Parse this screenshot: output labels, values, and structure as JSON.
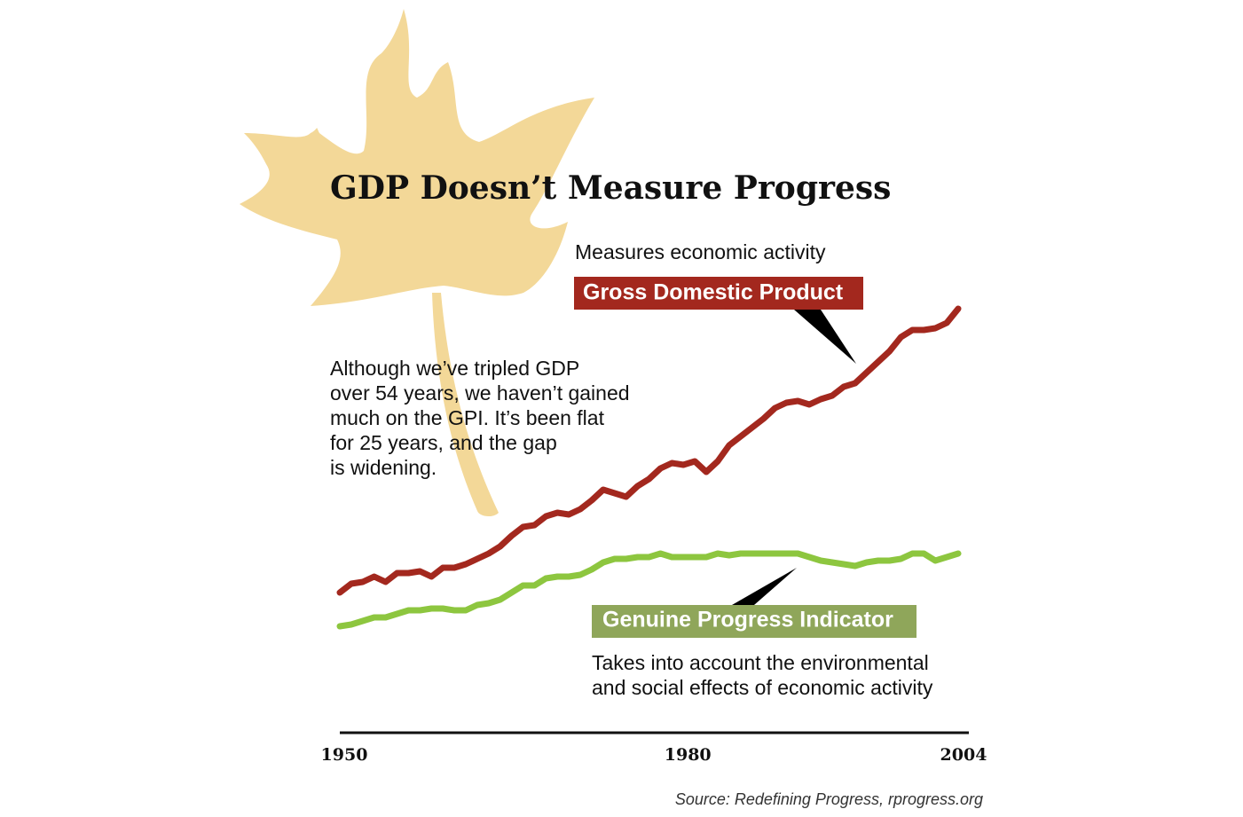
{
  "chart_data": {
    "type": "line",
    "title": "GDP Doesn’t Measure Progress",
    "annotations": {
      "gdp_note": "Measures economic activity",
      "gpi_note": [
        "Takes into account the environmental",
        "and social effects of economic activity"
      ],
      "body": [
        "Although we’ve tripled GDP",
        "over 54 years, we haven’t gained",
        "much on the GPI. It’s been flat",
        "for 25 years, and the gap",
        "is widening."
      ],
      "source": "Source: Redefining Progress, rprogress.org"
    },
    "x": [
      1950,
      1951,
      1952,
      1953,
      1954,
      1955,
      1956,
      1957,
      1958,
      1959,
      1960,
      1961,
      1962,
      1963,
      1964,
      1965,
      1966,
      1967,
      1968,
      1969,
      1970,
      1971,
      1972,
      1973,
      1974,
      1975,
      1976,
      1977,
      1978,
      1979,
      1980,
      1981,
      1982,
      1983,
      1984,
      1985,
      1986,
      1987,
      1988,
      1989,
      1990,
      1991,
      1992,
      1993,
      1994,
      1995,
      1996,
      1997,
      1998,
      1999,
      2000,
      2001,
      2002,
      2003,
      2004
    ],
    "xlim": [
      1950,
      2004
    ],
    "xticks": [
      1950,
      1980,
      2004
    ],
    "ylim": [
      0,
      100
    ],
    "series": [
      {
        "name": "Gross Domestic Product",
        "color": "#a3281e",
        "values": [
          13,
          15.5,
          16,
          17.5,
          16,
          18.5,
          18.5,
          19,
          17.5,
          20,
          20,
          21,
          22.5,
          24,
          26,
          29,
          31.5,
          32,
          34.5,
          35.5,
          35,
          36.5,
          39,
          42,
          41,
          40,
          43,
          45,
          48,
          49.5,
          49,
          50,
          47,
          50,
          54.5,
          57,
          59.5,
          62,
          65,
          66.5,
          67,
          66,
          67.5,
          68.5,
          71,
          72,
          75,
          78,
          81,
          85,
          87,
          87,
          87.5,
          89,
          93
        ]
      },
      {
        "name": "Genuine Progress Indicator",
        "color": "#8dc63f",
        "values": [
          3.5,
          4,
          5,
          6,
          6,
          7,
          8,
          8,
          8.5,
          8.5,
          8,
          8,
          9.5,
          10,
          11,
          13,
          15,
          15,
          17,
          17.5,
          17.5,
          18,
          19.5,
          21.5,
          22.5,
          22.5,
          23,
          23,
          24,
          23,
          23,
          23,
          23,
          24,
          23.5,
          24,
          24,
          24,
          24,
          24,
          24,
          23,
          22,
          21.5,
          21,
          20.5,
          21.5,
          22,
          22,
          22.5,
          24,
          24,
          22,
          23,
          24
        ]
      }
    ]
  }
}
